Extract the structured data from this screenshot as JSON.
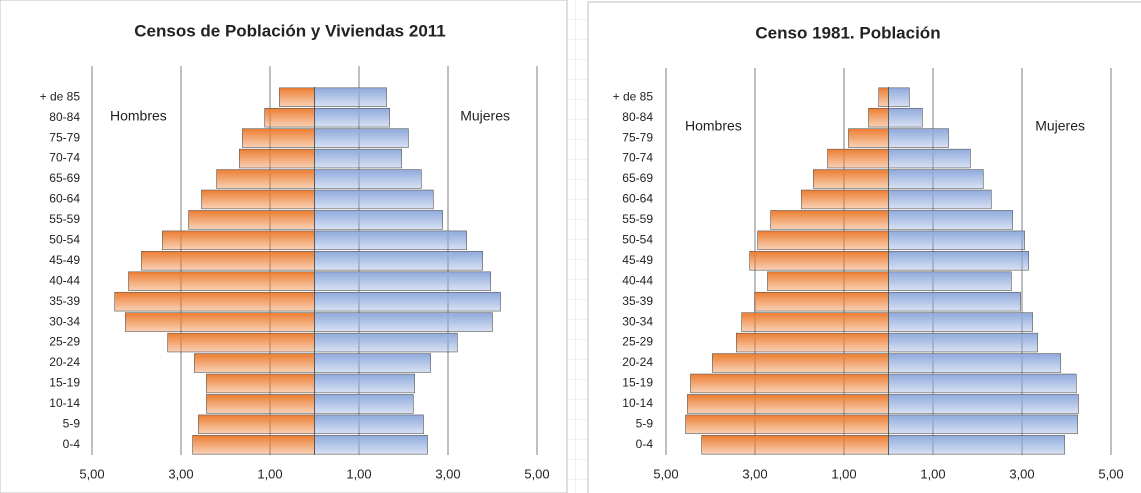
{
  "chart_data": [
    {
      "type": "pyramid",
      "title": "Censos de Población y Viviendas 2011",
      "categories": [
        "0-4",
        "5-9",
        "10-14",
        "15-19",
        "20-24",
        "25-29",
        "30-34",
        "35-39",
        "40-44",
        "45-49",
        "50-54",
        "55-59",
        "60-64",
        "65-69",
        "70-74",
        "75-79",
        "80-84",
        "+ de 85"
      ],
      "series": [
        {
          "name": "Hombres",
          "color": "#ed7d31",
          "values": [
            -2.74,
            -2.61,
            -2.43,
            -2.43,
            -2.7,
            -3.3,
            -4.25,
            -4.49,
            -4.18,
            -3.89,
            -3.42,
            -2.83,
            -2.54,
            -2.2,
            -1.69,
            -1.62,
            -1.12,
            -0.79
          ]
        },
        {
          "name": "Mujeres",
          "color": "#8faadc",
          "values": [
            2.54,
            2.45,
            2.22,
            2.25,
            2.61,
            3.21,
            4.0,
            4.18,
            3.96,
            3.78,
            3.42,
            2.88,
            2.67,
            2.4,
            1.96,
            2.11,
            1.69,
            1.62
          ]
        }
      ],
      "xlim": [
        -5,
        5
      ],
      "xticks": [
        {
          "value": -5,
          "label": "5,00"
        },
        {
          "value": -3,
          "label": "3,00"
        },
        {
          "value": -1,
          "label": "1,00"
        },
        {
          "value": 1,
          "label": "1,00"
        },
        {
          "value": 3,
          "label": "3,00"
        },
        {
          "value": 5,
          "label": "5,00"
        }
      ],
      "grid": true
    },
    {
      "type": "pyramid",
      "title": "Censo 1981. Población",
      "categories": [
        "0-4",
        "5-9",
        "10-14",
        "15-19",
        "20-24",
        "25-29",
        "30-34",
        "35-39",
        "40-44",
        "45-49",
        "50-54",
        "55-59",
        "60-64",
        "65-69",
        "70-74",
        "75-79",
        "80-84",
        "+ de 85"
      ],
      "series": [
        {
          "name": "Hombres",
          "color": "#ed7d31",
          "values": [
            -4.2,
            -4.56,
            -4.52,
            -4.45,
            -3.96,
            -3.42,
            -3.3,
            -3.01,
            -2.72,
            -3.12,
            -2.94,
            -2.65,
            -1.96,
            -1.69,
            -1.37,
            -0.9,
            -0.45,
            -0.22
          ]
        },
        {
          "name": "Mujeres",
          "color": "#8faadc",
          "values": [
            3.96,
            4.25,
            4.27,
            4.22,
            3.87,
            3.35,
            3.24,
            2.97,
            2.76,
            3.15,
            3.06,
            2.79,
            2.31,
            2.13,
            1.84,
            1.35,
            0.76,
            0.47
          ]
        }
      ],
      "xlim": [
        -5,
        5
      ],
      "xticks": [
        {
          "value": -5,
          "label": "5,00"
        },
        {
          "value": -3,
          "label": "3,00"
        },
        {
          "value": -1,
          "label": "1,00"
        },
        {
          "value": 1,
          "label": "1,00"
        },
        {
          "value": 3,
          "label": "3,00"
        },
        {
          "value": 5,
          "label": "5,00"
        }
      ],
      "grid": true
    }
  ]
}
